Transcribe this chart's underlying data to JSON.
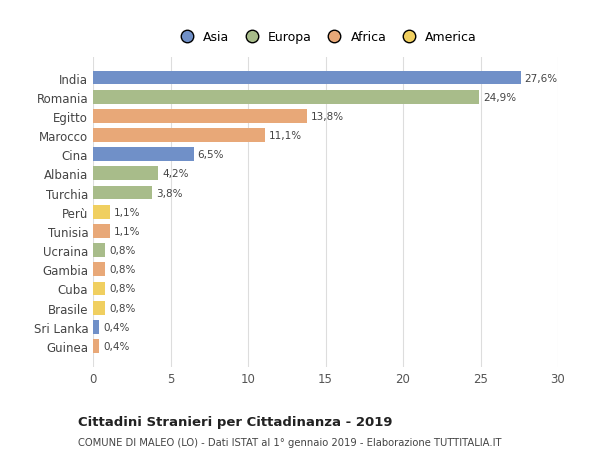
{
  "countries": [
    "India",
    "Romania",
    "Egitto",
    "Marocco",
    "Cina",
    "Albania",
    "Turchia",
    "Perù",
    "Tunisia",
    "Ucraina",
    "Gambia",
    "Cuba",
    "Brasile",
    "Sri Lanka",
    "Guinea"
  ],
  "values": [
    27.6,
    24.9,
    13.8,
    11.1,
    6.5,
    4.2,
    3.8,
    1.1,
    1.1,
    0.8,
    0.8,
    0.8,
    0.8,
    0.4,
    0.4
  ],
  "labels": [
    "27,6%",
    "24,9%",
    "13,8%",
    "11,1%",
    "6,5%",
    "4,2%",
    "3,8%",
    "1,1%",
    "1,1%",
    "0,8%",
    "0,8%",
    "0,8%",
    "0,8%",
    "0,4%",
    "0,4%"
  ],
  "continents": [
    "Asia",
    "Europa",
    "Africa",
    "Africa",
    "Asia",
    "Europa",
    "Europa",
    "America",
    "Africa",
    "Europa",
    "Africa",
    "America",
    "America",
    "Asia",
    "Africa"
  ],
  "colors": {
    "Asia": "#7090C8",
    "Europa": "#A8BC8A",
    "Africa": "#E8A878",
    "America": "#F0CF60"
  },
  "title": "Cittadini Stranieri per Cittadinanza - 2019",
  "subtitle": "COMUNE DI MALEO (LO) - Dati ISTAT al 1° gennaio 2019 - Elaborazione TUTTITALIA.IT",
  "xlim": [
    0,
    30
  ],
  "xticks": [
    0,
    5,
    10,
    15,
    20,
    25,
    30
  ],
  "background_color": "#ffffff",
  "grid_color": "#dddddd"
}
